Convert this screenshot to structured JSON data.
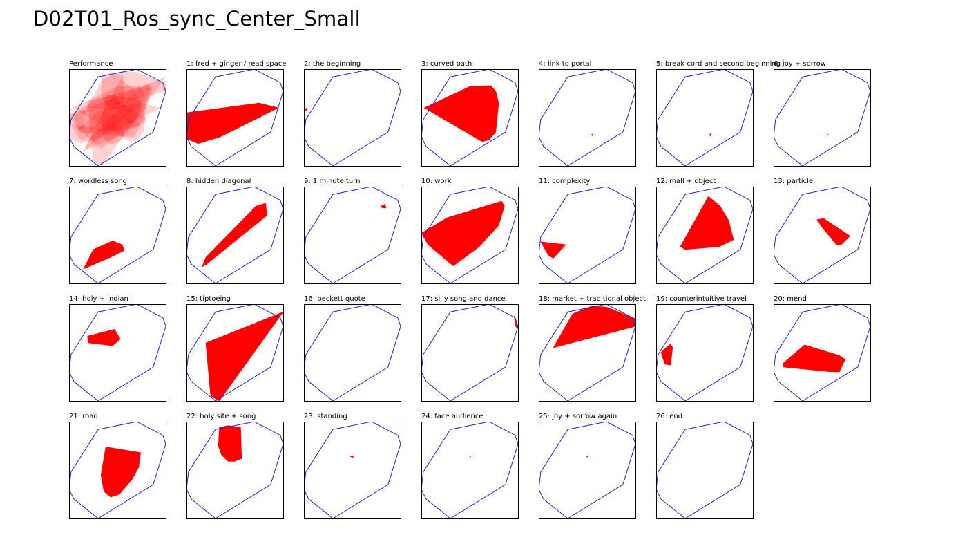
{
  "title": "D02T01_Ros_sync_Center_Small",
  "colors": {
    "boundary": "#2222cc",
    "region": "#ff0000",
    "overlay_opacity": 0.18,
    "frame": "#000000"
  },
  "chart_data": {
    "type": "small-multiples-polygon",
    "grid": {
      "rows": 4,
      "cols": 7
    },
    "xlim": [
      0,
      1
    ],
    "ylim": [
      0,
      1
    ],
    "boundary": [
      [
        0.02,
        0.48
      ],
      [
        0.3,
        0.92
      ],
      [
        0.7,
        1.0
      ],
      [
        0.97,
        0.86
      ],
      [
        1.0,
        0.77
      ],
      [
        0.87,
        0.35
      ],
      [
        0.3,
        0.0
      ],
      [
        0.05,
        0.2
      ],
      [
        0.0,
        0.3
      ]
    ],
    "panels": [
      {
        "label": "Performance",
        "kind": "overlay",
        "regions": []
      },
      {
        "label": "1: fred + ginger / read space",
        "regions": [
          [
            [
              0.0,
              0.55
            ],
            [
              0.75,
              0.65
            ],
            [
              0.95,
              0.6
            ],
            [
              0.35,
              0.3
            ],
            [
              0.12,
              0.23
            ],
            [
              0.0,
              0.28
            ]
          ]
        ]
      },
      {
        "label": "2: the beginning",
        "regions": [
          [
            [
              0.01,
              0.58
            ],
            [
              0.03,
              0.6
            ],
            [
              0.03,
              0.57
            ]
          ]
        ]
      },
      {
        "label": "3: curved path",
        "regions": [
          [
            [
              0.03,
              0.6
            ],
            [
              0.5,
              0.82
            ],
            [
              0.72,
              0.83
            ],
            [
              0.77,
              0.77
            ],
            [
              0.8,
              0.65
            ],
            [
              0.77,
              0.35
            ],
            [
              0.7,
              0.27
            ],
            [
              0.63,
              0.25
            ]
          ]
        ]
      },
      {
        "label": "4: link to portal",
        "regions": [
          [
            [
              0.54,
              0.32
            ],
            [
              0.56,
              0.33
            ],
            [
              0.56,
              0.31
            ]
          ]
        ]
      },
      {
        "label": "5: break cord and second beginning",
        "regions": [
          [
            [
              0.55,
              0.32
            ],
            [
              0.57,
              0.34
            ],
            [
              0.56,
              0.31
            ]
          ]
        ]
      },
      {
        "label": "6: joy + sorrow",
        "regions": [
          [
            [
              0.55,
              0.32
            ],
            [
              0.565,
              0.325
            ],
            [
              0.56,
              0.315
            ]
          ]
        ]
      },
      {
        "label": "7: wordless song",
        "regions": [
          [
            [
              0.15,
              0.15
            ],
            [
              0.45,
              0.28
            ],
            [
              0.57,
              0.34
            ],
            [
              0.55,
              0.4
            ],
            [
              0.45,
              0.44
            ],
            [
              0.25,
              0.35
            ]
          ]
        ]
      },
      {
        "label": "8: hidden diagonal",
        "regions": [
          [
            [
              0.16,
              0.17
            ],
            [
              0.21,
              0.2
            ],
            [
              0.83,
              0.7
            ],
            [
              0.82,
              0.83
            ],
            [
              0.72,
              0.8
            ],
            [
              0.2,
              0.27
            ]
          ]
        ]
      },
      {
        "label": "9: 1 minute turn",
        "regions": [
          [
            [
              0.8,
              0.8
            ],
            [
              0.84,
              0.82
            ],
            [
              0.85,
              0.78
            ],
            [
              0.81,
              0.78
            ]
          ]
        ]
      },
      {
        "label": "10: work",
        "regions": [
          [
            [
              0.0,
              0.52
            ],
            [
              0.27,
              0.68
            ],
            [
              0.83,
              0.85
            ],
            [
              0.86,
              0.8
            ],
            [
              0.8,
              0.6
            ],
            [
              0.6,
              0.38
            ],
            [
              0.33,
              0.18
            ],
            [
              0.07,
              0.4
            ]
          ]
        ]
      },
      {
        "label": "11: complexity",
        "regions": [
          [
            [
              0.02,
              0.43
            ],
            [
              0.28,
              0.4
            ],
            [
              0.15,
              0.26
            ],
            [
              0.1,
              0.29
            ]
          ]
        ]
      },
      {
        "label": "12: mall + object",
        "regions": [
          [
            [
              0.25,
              0.38
            ],
            [
              0.54,
              0.9
            ],
            [
              0.66,
              0.8
            ],
            [
              0.75,
              0.65
            ],
            [
              0.8,
              0.45
            ],
            [
              0.65,
              0.38
            ],
            [
              0.3,
              0.35
            ]
          ]
        ]
      },
      {
        "label": "13: particle",
        "regions": [
          [
            [
              0.45,
              0.66
            ],
            [
              0.52,
              0.67
            ],
            [
              0.79,
              0.49
            ],
            [
              0.7,
              0.4
            ],
            [
              0.65,
              0.4
            ],
            [
              0.5,
              0.58
            ]
          ]
        ]
      },
      {
        "label": "14: holy + indian",
        "regions": [
          [
            [
              0.19,
              0.67
            ],
            [
              0.47,
              0.74
            ],
            [
              0.53,
              0.64
            ],
            [
              0.45,
              0.57
            ],
            [
              0.2,
              0.6
            ]
          ]
        ]
      },
      {
        "label": "15: tiptoeing",
        "regions": [
          [
            [
              0.2,
              0.6
            ],
            [
              1.0,
              0.92
            ],
            [
              0.34,
              0.0
            ],
            [
              0.25,
              0.05
            ]
          ]
        ]
      },
      {
        "label": "16: beckett quote",
        "regions": []
      },
      {
        "label": "17: silly song and dance",
        "regions": [
          [
            [
              0.96,
              0.88
            ],
            [
              1.0,
              0.77
            ],
            [
              0.98,
              0.76
            ],
            [
              0.97,
              0.8
            ]
          ]
        ]
      },
      {
        "label": "18: market + traditional object",
        "regions": [
          [
            [
              0.15,
              0.55
            ],
            [
              0.35,
              0.9
            ],
            [
              0.55,
              0.98
            ],
            [
              0.7,
              0.97
            ],
            [
              1.0,
              0.85
            ],
            [
              1.0,
              0.77
            ]
          ]
        ]
      },
      {
        "label": "19: counterintuitive travel",
        "regions": [
          [
            [
              0.1,
              0.55
            ],
            [
              0.15,
              0.59
            ],
            [
              0.17,
              0.55
            ],
            [
              0.15,
              0.37
            ],
            [
              0.09,
              0.38
            ],
            [
              0.05,
              0.5
            ]
          ]
        ]
      },
      {
        "label": "20: mend",
        "regions": [
          [
            [
              0.1,
              0.39
            ],
            [
              0.32,
              0.58
            ],
            [
              0.68,
              0.47
            ],
            [
              0.74,
              0.43
            ],
            [
              0.68,
              0.3
            ],
            [
              0.6,
              0.3
            ],
            [
              0.1,
              0.35
            ]
          ]
        ]
      },
      {
        "label": "21: road",
        "regions": [
          [
            [
              0.38,
              0.74
            ],
            [
              0.74,
              0.68
            ],
            [
              0.72,
              0.53
            ],
            [
              0.65,
              0.4
            ],
            [
              0.52,
              0.25
            ],
            [
              0.43,
              0.22
            ],
            [
              0.36,
              0.28
            ],
            [
              0.33,
              0.45
            ]
          ]
        ]
      },
      {
        "label": "22: holy site + song",
        "regions": [
          [
            [
              0.34,
              0.94
            ],
            [
              0.43,
              0.96
            ],
            [
              0.56,
              0.94
            ],
            [
              0.57,
              0.62
            ],
            [
              0.5,
              0.59
            ],
            [
              0.43,
              0.59
            ],
            [
              0.36,
              0.66
            ],
            [
              0.33,
              0.75
            ]
          ]
        ]
      },
      {
        "label": "23: standing",
        "regions": [
          [
            [
              0.48,
              0.64
            ],
            [
              0.51,
              0.65
            ],
            [
              0.51,
              0.63
            ]
          ]
        ]
      },
      {
        "label": "24: face audience",
        "regions": [
          [
            [
              0.5,
              0.64
            ],
            [
              0.51,
              0.645
            ],
            [
              0.51,
              0.635
            ]
          ]
        ]
      },
      {
        "label": "25: joy + sorrow again",
        "regions": [
          [
            [
              0.49,
              0.64
            ],
            [
              0.505,
              0.645
            ],
            [
              0.505,
              0.635
            ]
          ]
        ]
      },
      {
        "label": "26: end",
        "regions": []
      }
    ]
  }
}
